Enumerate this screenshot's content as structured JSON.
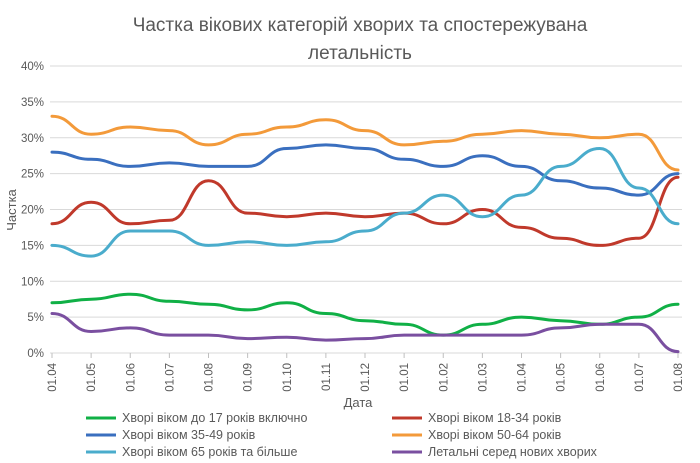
{
  "chart_data": {
    "type": "line",
    "title_line1": "Частка вікових категорій хворих та спостережувана",
    "title_line2": "летальність",
    "xlabel": "Дата",
    "ylabel": "Частка",
    "x": [
      "01.04",
      "01.05",
      "01.06",
      "01.07",
      "01.08",
      "01.09",
      "01.10",
      "01.11",
      "01.12",
      "01.01",
      "01.02",
      "01.03",
      "01.04",
      "01.05",
      "01.06",
      "01.07",
      "01.08"
    ],
    "ylim": [
      0,
      40
    ],
    "yticks": [
      "0%",
      "5%",
      "10%",
      "15%",
      "20%",
      "25%",
      "30%",
      "35%",
      "40%"
    ],
    "grid": true,
    "legend_position": "bottom",
    "series": [
      {
        "name": "Хворі віком до 17 років включно",
        "color": "#10b046",
        "values": [
          7.0,
          7.5,
          8.2,
          7.2,
          6.8,
          6.0,
          7.0,
          5.5,
          4.5,
          4.0,
          2.5,
          4.0,
          5.0,
          4.5,
          4.0,
          5.0,
          6.8
        ]
      },
      {
        "name": "Хворі віком 18-34 років",
        "color": "#c0392b",
        "values": [
          18.0,
          21.0,
          18.0,
          18.5,
          24.0,
          19.5,
          19.0,
          19.5,
          19.0,
          19.5,
          18.0,
          20.0,
          17.5,
          16.0,
          15.0,
          16.0,
          24.5
        ]
      },
      {
        "name": "Хворі віком 35-49 років",
        "color": "#3a6fbf",
        "values": [
          28.0,
          27.0,
          26.0,
          26.5,
          26.0,
          26.0,
          28.5,
          29.0,
          28.5,
          27.0,
          26.0,
          27.5,
          26.0,
          24.0,
          23.0,
          22.0,
          25.0
        ]
      },
      {
        "name": "Хворі віком 50-64 років",
        "color": "#f39a3a",
        "values": [
          33.0,
          30.5,
          31.5,
          31.0,
          29.0,
          30.5,
          31.5,
          32.5,
          31.0,
          29.0,
          29.5,
          30.5,
          31.0,
          30.5,
          30.0,
          30.5,
          25.5
        ]
      },
      {
        "name": "Хворі віком 65 років та більше",
        "color": "#4aaccc",
        "values": [
          15.0,
          13.5,
          17.0,
          17.0,
          15.0,
          15.5,
          15.0,
          15.5,
          17.0,
          19.5,
          22.0,
          19.0,
          22.0,
          26.0,
          28.5,
          23.0,
          18.0
        ]
      },
      {
        "name": "Летальні серед нових хворих",
        "color": "#7a4fa0",
        "values": [
          5.5,
          3.0,
          3.5,
          2.5,
          2.5,
          2.0,
          2.2,
          1.8,
          2.0,
          2.5,
          2.5,
          2.5,
          2.5,
          3.5,
          4.0,
          4.0,
          0.2
        ]
      }
    ]
  }
}
